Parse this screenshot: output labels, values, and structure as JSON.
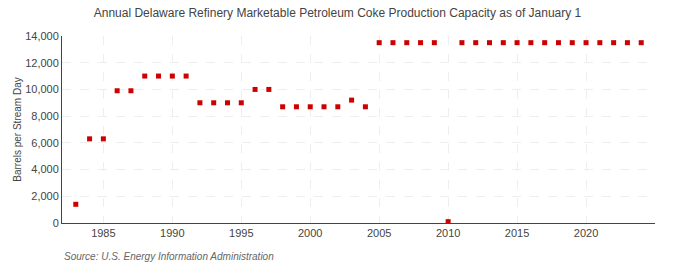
{
  "chart_data": {
    "type": "scatter",
    "title": "Annual Delaware Refinery Marketable Petroleum Coke Production Capacity as of January 1",
    "y_label": "Barrels per Stream Day",
    "annotations": [
      "Source: U.S. Energy Information Administration"
    ],
    "color": "#cc0000",
    "marker": "square",
    "grid": true,
    "xlim": [
      1982,
      2025
    ],
    "ylim": [
      0,
      14000
    ],
    "xticks": [
      1985,
      1990,
      1995,
      2000,
      2005,
      2010,
      2015,
      2020
    ],
    "yticks": [
      0,
      {
        "value": 2000,
        "label": "2,000"
      },
      {
        "value": 4000,
        "label": "4,000"
      },
      {
        "value": 6000,
        "label": "6,000"
      },
      {
        "value": 8000,
        "label": "8,000"
      },
      {
        "value": 10000,
        "label": "10,000"
      },
      {
        "value": 12000,
        "label": "12,000"
      },
      {
        "value": 14000,
        "label": "14,000"
      }
    ],
    "x": [
      1983,
      1984,
      1985,
      1986,
      1987,
      1988,
      1989,
      1990,
      1991,
      1992,
      1993,
      1994,
      1995,
      1996,
      1997,
      1998,
      1999,
      2000,
      2001,
      2002,
      2003,
      2004,
      2005,
      2006,
      2007,
      2008,
      2009,
      2010,
      2011,
      2012,
      2013,
      2014,
      2015,
      2016,
      2017,
      2018,
      2019,
      2020,
      2021,
      2022,
      2023,
      2024
    ],
    "values": [
      1400,
      6300,
      6300,
      9900,
      9900,
      11000,
      11000,
      11000,
      11000,
      9000,
      9000,
      9000,
      9000,
      10000,
      10000,
      8700,
      8700,
      8700,
      8700,
      8700,
      9200,
      8700,
      13500,
      13500,
      13500,
      13500,
      13500,
      100,
      13500,
      13500,
      13500,
      13500,
      13500,
      13500,
      13500,
      13500,
      13500,
      13500,
      13500,
      13500,
      13500,
      13500
    ]
  }
}
